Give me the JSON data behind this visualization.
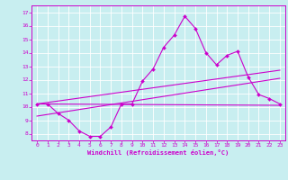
{
  "x": [
    0,
    1,
    2,
    3,
    4,
    5,
    6,
    7,
    8,
    9,
    10,
    11,
    12,
    13,
    14,
    15,
    16,
    17,
    18,
    19,
    20,
    21,
    22,
    23
  ],
  "line1": [
    10.2,
    10.2,
    9.5,
    9.0,
    8.2,
    7.8,
    7.8,
    8.5,
    10.2,
    10.2,
    11.9,
    12.8,
    14.4,
    15.3,
    16.7,
    15.8,
    14.0,
    13.1,
    13.8,
    14.1,
    12.2,
    10.9,
    10.6,
    10.2
  ],
  "line2_x": [
    0,
    23
  ],
  "line2_y": [
    10.2,
    10.1
  ],
  "line3_x": [
    0,
    23
  ],
  "line3_y": [
    10.2,
    12.7
  ],
  "line4_x": [
    0,
    23
  ],
  "line4_y": [
    9.3,
    12.1
  ],
  "xlim": [
    -0.5,
    23.5
  ],
  "ylim": [
    7.5,
    17.5
  ],
  "yticks": [
    8,
    9,
    10,
    11,
    12,
    13,
    14,
    15,
    16,
    17
  ],
  "xticks": [
    0,
    1,
    2,
    3,
    4,
    5,
    6,
    7,
    8,
    9,
    10,
    11,
    12,
    13,
    14,
    15,
    16,
    17,
    18,
    19,
    20,
    21,
    22,
    23
  ],
  "xlabel": "Windchill (Refroidissement éolien,°C)",
  "line_color": "#cc00cc",
  "bg_color": "#c8eef0",
  "grid_color": "#ffffff"
}
